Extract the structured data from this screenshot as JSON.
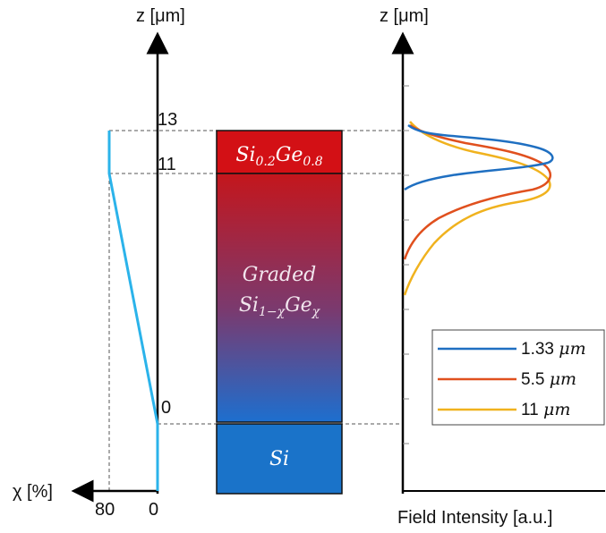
{
  "left_axis": {
    "z_label": "z [μm]",
    "chi_label": "χ [%]",
    "ticks": {
      "z13": "13",
      "z11": "11",
      "z0": "0",
      "chi80": "80",
      "chi0": "0"
    },
    "profile_color": "#2bb3ea",
    "profile_points_chi_z": [
      [
        0,
        -3
      ],
      [
        0,
        0
      ],
      [
        80,
        11
      ],
      [
        80,
        13
      ]
    ]
  },
  "layer_stack": {
    "top_layer": {
      "base": "Si",
      "sub1": "0.2",
      "mid": "Ge",
      "sub2": "0.8",
      "color": "#d31015"
    },
    "graded_layer": {
      "word": "Graded",
      "base": "Si",
      "sub1": "1−χ",
      "mid": "Ge",
      "sub2": "χ",
      "top_color": "#c4161c",
      "bottom_color": "#1d6fcf"
    },
    "substrate": {
      "label": "Si",
      "color": "#1a73c9"
    }
  },
  "right_plot": {
    "z_label": "z [μm]",
    "x_label": "Field Intensity [a.u.]",
    "legend": [
      {
        "label": "1.33",
        "unit": "μm",
        "color": "#1f6fc1"
      },
      {
        "label": "5.5",
        "unit": "μm",
        "color": "#e0501e"
      },
      {
        "label": "11",
        "unit": "μm",
        "color": "#f0b21e"
      }
    ]
  }
}
